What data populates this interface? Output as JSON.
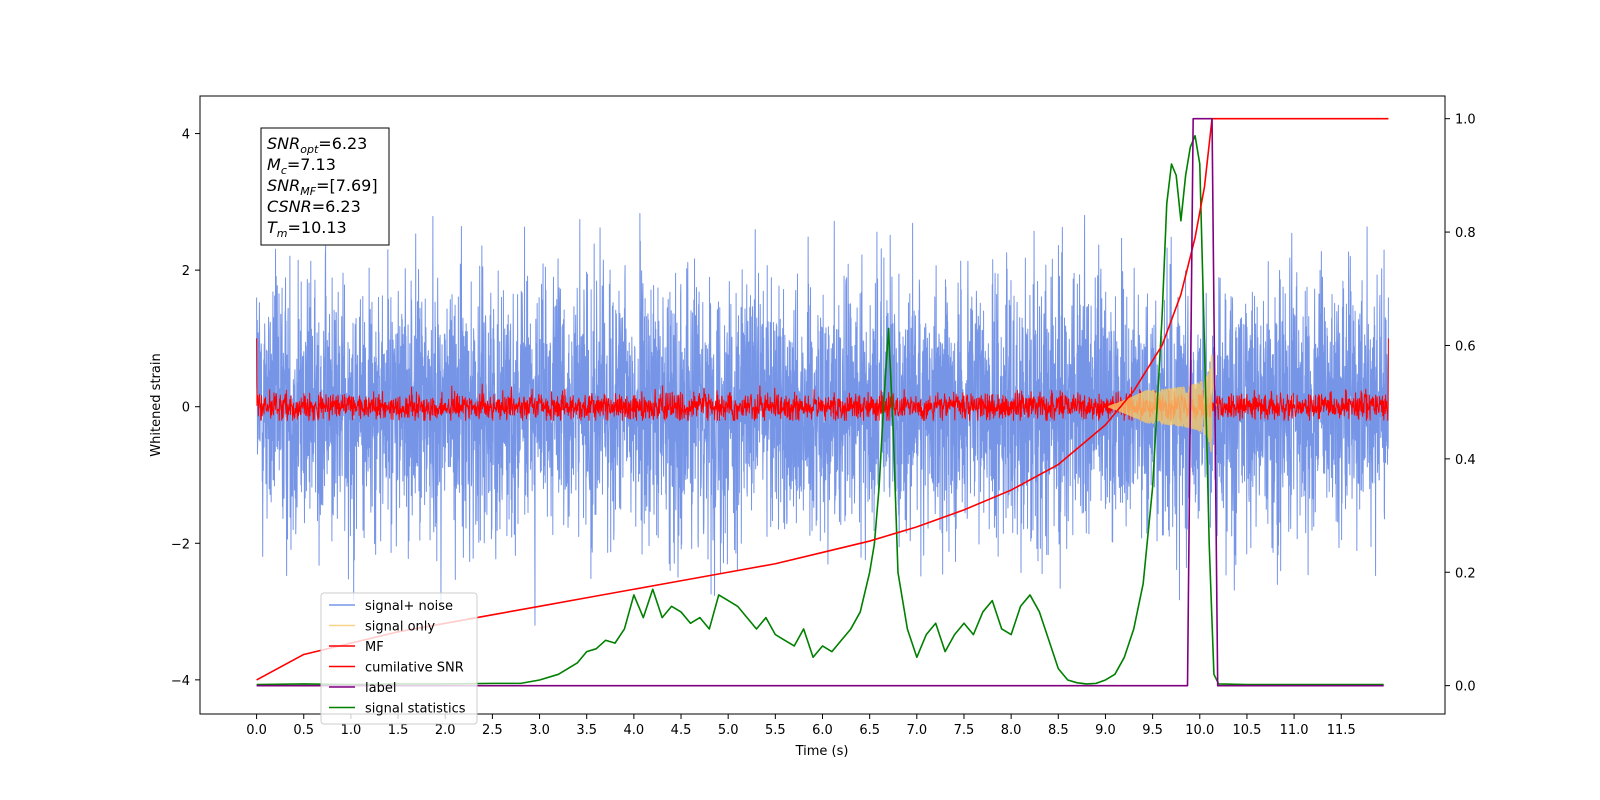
{
  "chart_data": {
    "type": "line",
    "title": "",
    "xlabel": "Time (s)",
    "ylabel": "Whitened strain",
    "ylabel_right": "",
    "xlim": [
      -0.6,
      12.6
    ],
    "ylim": [
      -4.5,
      4.55
    ],
    "ylim_right": [
      -0.05,
      1.04
    ],
    "x_ticks": [
      "0.0",
      "0.5",
      "1.0",
      "1.5",
      "2.0",
      "2.5",
      "3.0",
      "3.5",
      "4.0",
      "4.5",
      "5.0",
      "5.5",
      "6.0",
      "6.5",
      "7.0",
      "7.5",
      "8.0",
      "8.5",
      "9.0",
      "9.5",
      "10.0",
      "10.5",
      "11.0",
      "11.5"
    ],
    "y_ticks": [
      "−4",
      "−2",
      "0",
      "2",
      "4"
    ],
    "y_ticks_right": [
      "0.0",
      "0.2",
      "0.4",
      "0.6",
      "0.8",
      "1.0"
    ],
    "legend_position": "lower-left",
    "grid": false,
    "series": [
      {
        "name": "signal+ noise",
        "axis": "left",
        "color": "#6f8fe6",
        "kind": "noise",
        "x_range": [
          0,
          12
        ],
        "std": 0.95,
        "peak_range": [
          -4.1,
          4.2
        ]
      },
      {
        "name": "signal only",
        "axis": "left",
        "color": "#f5c86b",
        "kind": "chirp",
        "merger_time": 10.13,
        "peak_amplitude": 0.85
      },
      {
        "name": "MF",
        "axis": "left",
        "color": "#ff0000",
        "kind": "noise",
        "x_range": [
          0,
          12
        ],
        "std": 0.1,
        "peak_range": [
          -0.2,
          1.0
        ]
      },
      {
        "name": "cumilative SNR",
        "axis": "right",
        "color": "#ff0000",
        "x": [
          0.0,
          0.5,
          1.0,
          1.5,
          2.0,
          2.5,
          3.0,
          3.5,
          4.0,
          4.5,
          5.0,
          5.5,
          6.0,
          6.5,
          7.0,
          7.5,
          8.0,
          8.5,
          9.0,
          9.3,
          9.6,
          9.8,
          9.95,
          10.05,
          10.13,
          11.0,
          12.0
        ],
        "y": [
          0.01,
          0.055,
          0.075,
          0.095,
          0.11,
          0.125,
          0.14,
          0.155,
          0.17,
          0.185,
          0.2,
          0.215,
          0.235,
          0.255,
          0.28,
          0.31,
          0.345,
          0.39,
          0.46,
          0.52,
          0.6,
          0.69,
          0.79,
          0.88,
          1.0,
          1.0,
          1.0
        ]
      },
      {
        "name": "label",
        "axis": "right",
        "color": "#800080",
        "x": [
          0.0,
          9.87,
          9.93,
          10.13,
          10.19,
          11.95
        ],
        "y": [
          0.0,
          0.0,
          1.0,
          1.0,
          0.0,
          0.0
        ]
      },
      {
        "name": "signal statistics",
        "axis": "right",
        "color": "#008000",
        "x": [
          0.0,
          0.5,
          1.0,
          1.5,
          2.0,
          2.5,
          2.8,
          3.0,
          3.2,
          3.4,
          3.5,
          3.6,
          3.7,
          3.8,
          3.9,
          4.0,
          4.1,
          4.2,
          4.3,
          4.4,
          4.5,
          4.6,
          4.7,
          4.8,
          4.9,
          5.0,
          5.1,
          5.2,
          5.3,
          5.4,
          5.5,
          5.6,
          5.7,
          5.8,
          5.9,
          6.0,
          6.1,
          6.2,
          6.3,
          6.4,
          6.5,
          6.55,
          6.6,
          6.65,
          6.7,
          6.75,
          6.8,
          6.9,
          7.0,
          7.1,
          7.2,
          7.3,
          7.4,
          7.5,
          7.6,
          7.7,
          7.8,
          7.9,
          8.0,
          8.1,
          8.2,
          8.3,
          8.4,
          8.5,
          8.6,
          8.7,
          8.8,
          8.9,
          9.0,
          9.1,
          9.2,
          9.3,
          9.4,
          9.5,
          9.6,
          9.65,
          9.7,
          9.75,
          9.8,
          9.85,
          9.9,
          9.95,
          10.0,
          10.05,
          10.1,
          10.15,
          10.2,
          10.5,
          11.0,
          11.95
        ],
        "y": [
          0.002,
          0.003,
          0.002,
          0.003,
          0.003,
          0.004,
          0.004,
          0.01,
          0.02,
          0.04,
          0.06,
          0.065,
          0.08,
          0.075,
          0.1,
          0.16,
          0.12,
          0.17,
          0.12,
          0.14,
          0.13,
          0.11,
          0.12,
          0.1,
          0.16,
          0.15,
          0.14,
          0.12,
          0.1,
          0.12,
          0.09,
          0.08,
          0.07,
          0.1,
          0.05,
          0.07,
          0.06,
          0.08,
          0.1,
          0.13,
          0.2,
          0.25,
          0.35,
          0.5,
          0.63,
          0.45,
          0.2,
          0.1,
          0.05,
          0.09,
          0.11,
          0.06,
          0.09,
          0.11,
          0.09,
          0.13,
          0.15,
          0.1,
          0.09,
          0.14,
          0.16,
          0.13,
          0.08,
          0.03,
          0.01,
          0.005,
          0.003,
          0.004,
          0.01,
          0.02,
          0.05,
          0.1,
          0.18,
          0.35,
          0.65,
          0.85,
          0.92,
          0.9,
          0.82,
          0.9,
          0.95,
          0.97,
          0.92,
          0.6,
          0.25,
          0.02,
          0.003,
          0.002,
          0.002,
          0.002
        ]
      }
    ],
    "annotation": {
      "lines": [
        {
          "base": "SNR",
          "sub": "opt",
          "value": "=6.23"
        },
        {
          "base": "M",
          "sub": "c",
          "value": "=7.13"
        },
        {
          "base": "SNR",
          "sub": "MF",
          "value": "=[7.69]"
        },
        {
          "base": "CSNR",
          "sub": "",
          "value": "=6.23"
        },
        {
          "base": "T",
          "sub": "m",
          "value": "=10.13"
        }
      ]
    }
  }
}
